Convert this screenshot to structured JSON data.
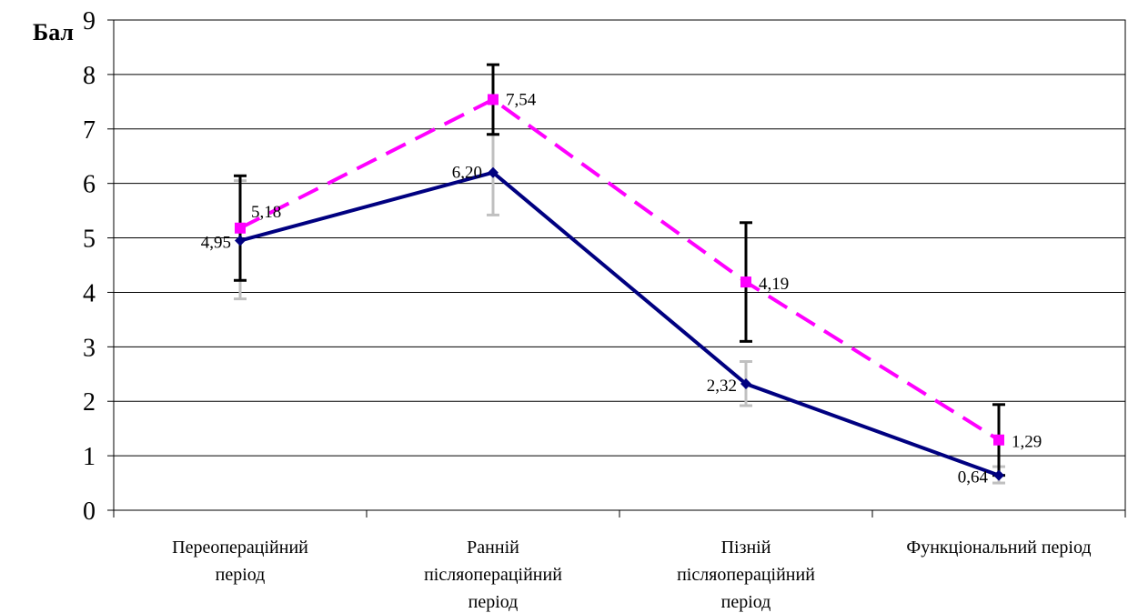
{
  "chart_data": {
    "type": "line",
    "ylabel": "Бал",
    "xlabel": "",
    "title": "",
    "ylim": [
      0,
      9
    ],
    "yticks": [
      0,
      1,
      2,
      3,
      4,
      5,
      6,
      7,
      8,
      9
    ],
    "grid": true,
    "categories": [
      [
        "Переопераційний",
        "період"
      ],
      [
        "Ранній",
        "післяопераційний",
        "період"
      ],
      [
        "Пізній",
        "післяопераційний",
        "період"
      ],
      [
        "Функціональний період"
      ]
    ],
    "series": [
      {
        "style": "solid",
        "color": "#000080",
        "marker": "diamond",
        "values": [
          4.95,
          6.2,
          2.32,
          0.64
        ],
        "labels": [
          "4,95",
          "6,20",
          "2,32",
          "0,64"
        ],
        "err_low": [
          3.88,
          5.42,
          1.92,
          0.5
        ],
        "err_high": [
          6.05,
          6.9,
          2.73,
          0.8
        ],
        "err_color": "#c0c0c0"
      },
      {
        "style": "dashed",
        "color": "#ff00ff",
        "marker": "square",
        "values": [
          5.18,
          7.54,
          4.19,
          1.29
        ],
        "labels": [
          "5,18",
          "7,54",
          "4,19",
          "1,29"
        ],
        "err_low": [
          4.22,
          6.9,
          3.1,
          0.64
        ],
        "err_high": [
          6.14,
          8.18,
          5.28,
          1.94
        ],
        "err_color": "#000000"
      }
    ]
  }
}
